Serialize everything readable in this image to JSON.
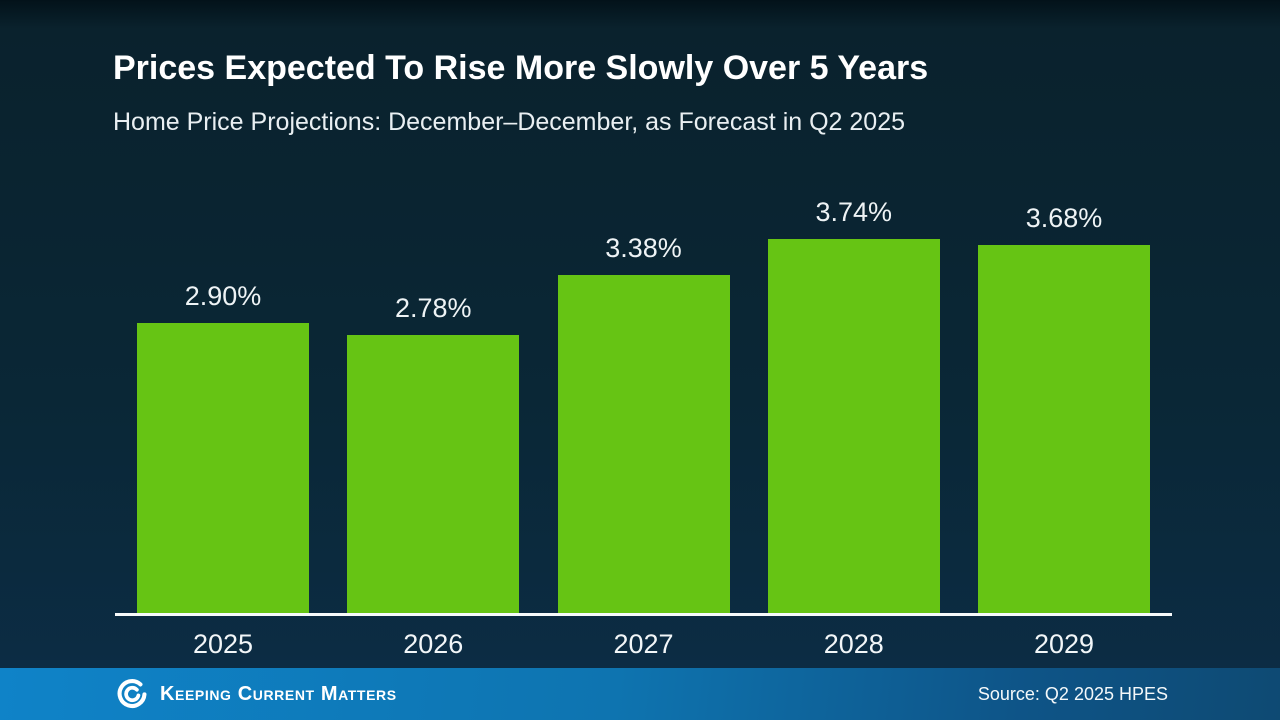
{
  "slide": {
    "title": "Prices Expected To Rise More Slowly Over 5 Years",
    "subtitle": "Home Price Projections: December–December, as Forecast in Q2 2025"
  },
  "chart_data": {
    "type": "bar",
    "title": "Prices Expected To Rise More Slowly Over 5 Years",
    "subtitle": "Home Price Projections: December–December, as Forecast in Q2 2025",
    "categories": [
      "2025",
      "2026",
      "2027",
      "2028",
      "2029"
    ],
    "values": [
      2.9,
      2.78,
      3.38,
      3.74,
      3.68
    ],
    "value_labels": [
      "2.90%",
      "2.78%",
      "3.38%",
      "3.74%",
      "3.68%"
    ],
    "xlabel": "",
    "ylabel": "",
    "ylim": [
      0,
      4.38
    ],
    "grid": false,
    "legend": false,
    "y_axis_shown": false,
    "bar_color": "#66c414",
    "axis_line_color": "#f7fafb",
    "label_color": "#eef3f5"
  },
  "footer": {
    "logo_text": "Keeping Current Matters",
    "source": "Source: Q2 2025 HPES"
  },
  "colors": {
    "background_top": "#0a222d",
    "background_bottom": "#0c2d47",
    "footer_left": "#0f83c8",
    "footer_right": "#0e4a73",
    "title_text": "#ffffff"
  }
}
